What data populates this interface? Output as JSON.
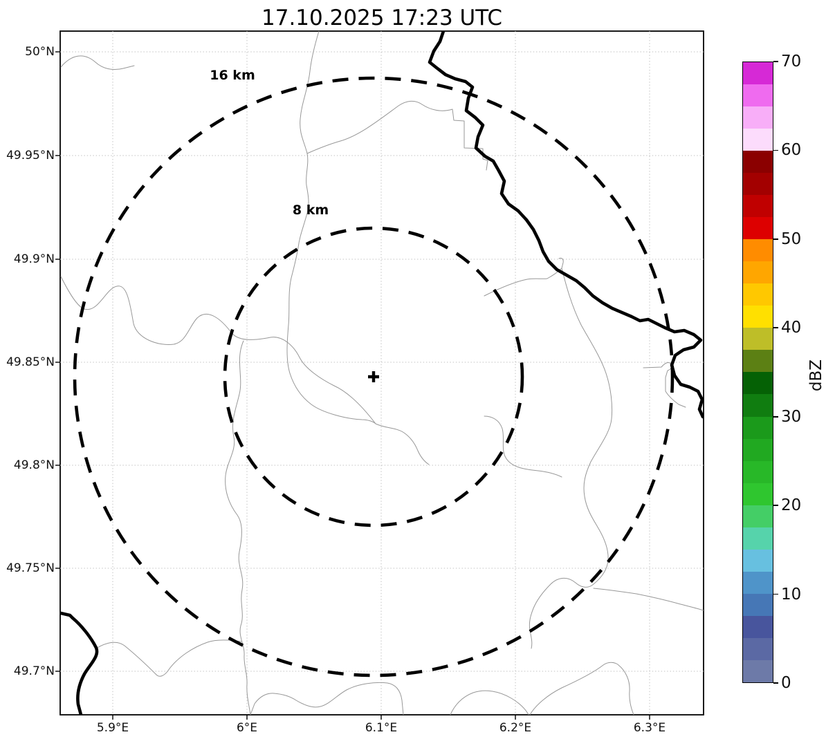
{
  "title": "17.10.2025 17:23 UTC",
  "map": {
    "radar_echoes_visible": false,
    "center_marker": "+",
    "range_rings": [
      {
        "label": "16 km",
        "radius_km": 16
      },
      {
        "label": "8 km",
        "radius_km": 8
      }
    ],
    "x_axis": {
      "tick_labels": [
        "5.9°E",
        "6°E",
        "6.1°E",
        "6.2°E",
        "6.3°E"
      ]
    },
    "y_axis": {
      "tick_labels": [
        "50°N",
        "49.95°N",
        "49.9°N",
        "49.85°N",
        "49.8°N",
        "49.75°N",
        "49.7°N"
      ]
    }
  },
  "colorbar": {
    "label": "dBZ",
    "min": 0,
    "max": 70,
    "tick_labels": [
      "0",
      "10",
      "20",
      "30",
      "40",
      "50",
      "60",
      "70"
    ],
    "segment_colors_bottom_to_top": [
      "#6d7aa8",
      "#5b69a4",
      "#48559d",
      "#4677b6",
      "#4f94c9",
      "#67c0e0",
      "#56d3ab",
      "#44ce66",
      "#2fc62f",
      "#28b828",
      "#21a921",
      "#1b9a1b",
      "#107d10",
      "#056105",
      "#5c8014",
      "#bebe28",
      "#ffe000",
      "#ffc800",
      "#ffa600",
      "#ff8c00",
      "#dd0000",
      "#c00000",
      "#a30000",
      "#8b0000",
      "#fcdcfc",
      "#f8aef8",
      "#ef6bef",
      "#d629d6"
    ]
  },
  "style_colors": {
    "plot_background": "#ffffff",
    "grid": "#c2c2c2",
    "boundary_thin": "#979797",
    "border_thick": "#000000",
    "range_ring": "#000000"
  }
}
